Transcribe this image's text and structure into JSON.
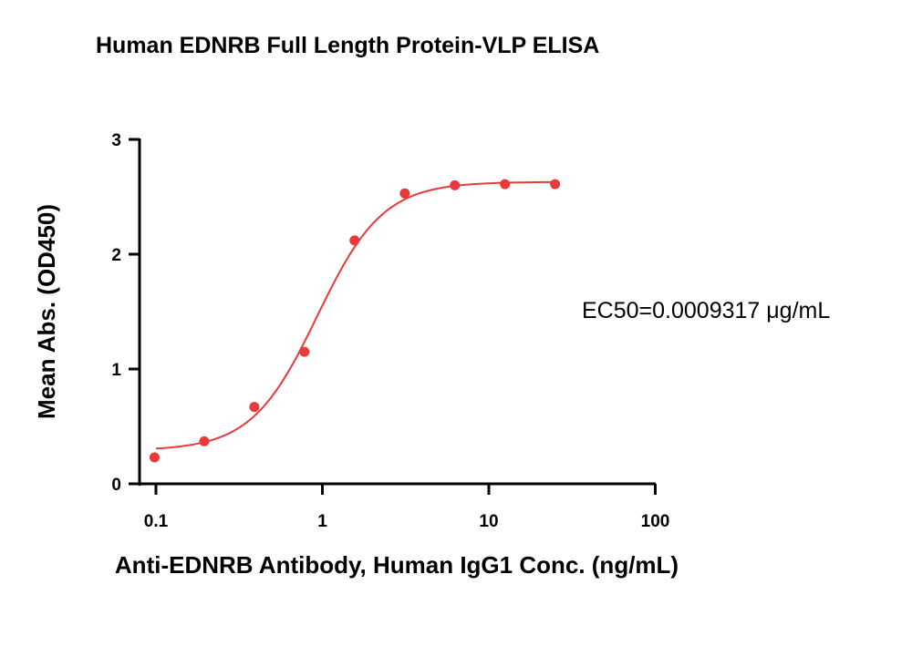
{
  "chart_data": {
    "type": "scatter",
    "title": "Human EDNRB Full Length Protein-VLP ELISA",
    "xlabel": "Anti-EDNRB Antibody, Human IgG1 Conc. (ng/mL)",
    "ylabel": "Mean Abs. (OD450)",
    "x_scale": "log",
    "xlim": [
      0.1,
      100
    ],
    "ylim": [
      0,
      3
    ],
    "x_ticks": [
      "0.1",
      "1",
      "10",
      "100"
    ],
    "y_ticks": [
      "0",
      "1",
      "2",
      "3"
    ],
    "grid": false,
    "color": "#e8393b",
    "series": [
      {
        "x": [
          0.098,
          0.195,
          0.39,
          0.78,
          1.56,
          3.125,
          6.25,
          12.5,
          25
        ],
        "y": [
          0.23,
          0.37,
          0.67,
          1.15,
          2.12,
          2.53,
          2.6,
          2.61,
          2.61
        ]
      }
    ],
    "fit": {
      "model": "4PL",
      "bottom": 0.29,
      "top": 2.63,
      "ec50": 0.93,
      "hill": 2.2
    },
    "annotation": "EC50=0.0009317 μg/mL"
  }
}
